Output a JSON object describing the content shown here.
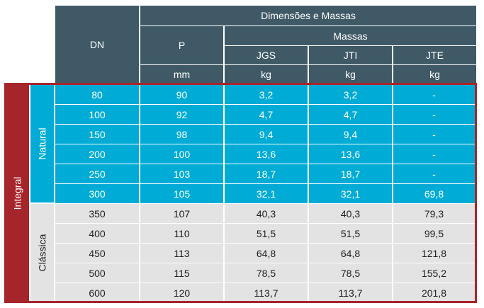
{
  "colors": {
    "header_bg": "#3f5a66",
    "natural_bg": "#00acd6",
    "classica_bg": "#e3e3e3",
    "integral_bg": "#a6252b",
    "border_red": "#a6252b"
  },
  "header": {
    "group_title": "Dimensões e Massas",
    "col_dn": "DN",
    "col_p": "P",
    "massas": "Massas",
    "col_jgs": "JGS",
    "col_jti": "JTI",
    "col_jte": "JTE",
    "unit_p": "mm",
    "unit_jgs": "kg",
    "unit_jti": "kg",
    "unit_jte": "kg"
  },
  "groups": {
    "integral": "Integral",
    "natural": "Natural",
    "classica": "Clássica"
  },
  "rows": [
    {
      "dn": "80",
      "p": "90",
      "jgs": "3,2",
      "jti": "3,2",
      "jte": "-"
    },
    {
      "dn": "100",
      "p": "92",
      "jgs": "4,7",
      "jti": "4,7",
      "jte": "-"
    },
    {
      "dn": "150",
      "p": "98",
      "jgs": "9,4",
      "jti": "9,4",
      "jte": "-"
    },
    {
      "dn": "200",
      "p": "100",
      "jgs": "13,6",
      "jti": "13,6",
      "jte": "-"
    },
    {
      "dn": "250",
      "p": "103",
      "jgs": "18,7",
      "jti": "18,7",
      "jte": "-"
    },
    {
      "dn": "300",
      "p": "105",
      "jgs": "32,1",
      "jti": "32,1",
      "jte": "69,8"
    },
    {
      "dn": "350",
      "p": "107",
      "jgs": "40,3",
      "jti": "40,3",
      "jte": "79,3"
    },
    {
      "dn": "400",
      "p": "110",
      "jgs": "51,5",
      "jti": "51,5",
      "jte": "99,5"
    },
    {
      "dn": "450",
      "p": "113",
      "jgs": "64,8",
      "jti": "64,8",
      "jte": "121,8"
    },
    {
      "dn": "500",
      "p": "115",
      "jgs": "78,5",
      "jti": "78,5",
      "jte": "155,2"
    },
    {
      "dn": "600",
      "p": "120",
      "jgs": "113,7",
      "jti": "113,7",
      "jte": "201,8"
    }
  ]
}
